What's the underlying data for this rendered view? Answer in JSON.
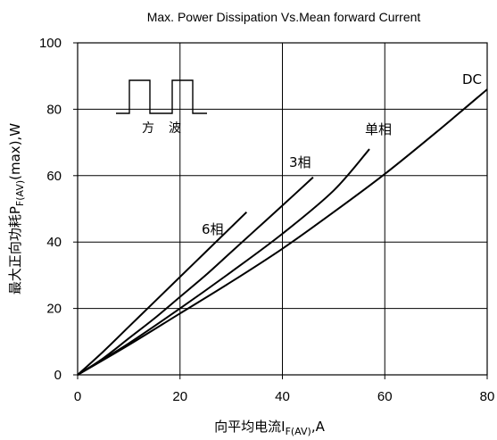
{
  "chart_data": {
    "type": "line",
    "title": "Max. Power Dissipation Vs.Mean forward Current",
    "xlabel": {
      "main": "向平均电流I",
      "sub": "F(AV)",
      "unit": ",A"
    },
    "ylabel": {
      "main": "最大正向功耗P",
      "sub": "F(AV)",
      "unit": "(max),W"
    },
    "xlim": [
      0,
      80
    ],
    "ylim": [
      0,
      100
    ],
    "xticks": [
      "0",
      "20",
      "40",
      "60",
      "80"
    ],
    "yticks": [
      "0",
      "20",
      "40",
      "60",
      "80",
      "100"
    ],
    "grid": true,
    "series": [
      {
        "name": "6相",
        "x": [
          0,
          5,
          10,
          15,
          20,
          25,
          30,
          33
        ],
        "y": [
          0,
          7,
          14.5,
          22,
          29.5,
          37,
          44.5,
          49
        ]
      },
      {
        "name": "3相",
        "x": [
          0,
          5,
          10,
          15,
          20,
          25,
          30,
          35,
          40,
          46
        ],
        "y": [
          0,
          5,
          11,
          17,
          23.5,
          30,
          37,
          44,
          51,
          59.5
        ]
      },
      {
        "name": "单相",
        "x": [
          0,
          10,
          20,
          30,
          40,
          50,
          57
        ],
        "y": [
          0,
          9.5,
          20,
          31,
          42.5,
          55.5,
          68
        ]
      },
      {
        "name": "DC",
        "x": [
          0,
          10,
          20,
          30,
          40,
          50,
          60,
          70,
          80
        ],
        "y": [
          0,
          9,
          18.5,
          28,
          38,
          49,
          60.5,
          73,
          86
        ]
      }
    ],
    "inset": {
      "labels": [
        "方",
        "波"
      ]
    }
  }
}
